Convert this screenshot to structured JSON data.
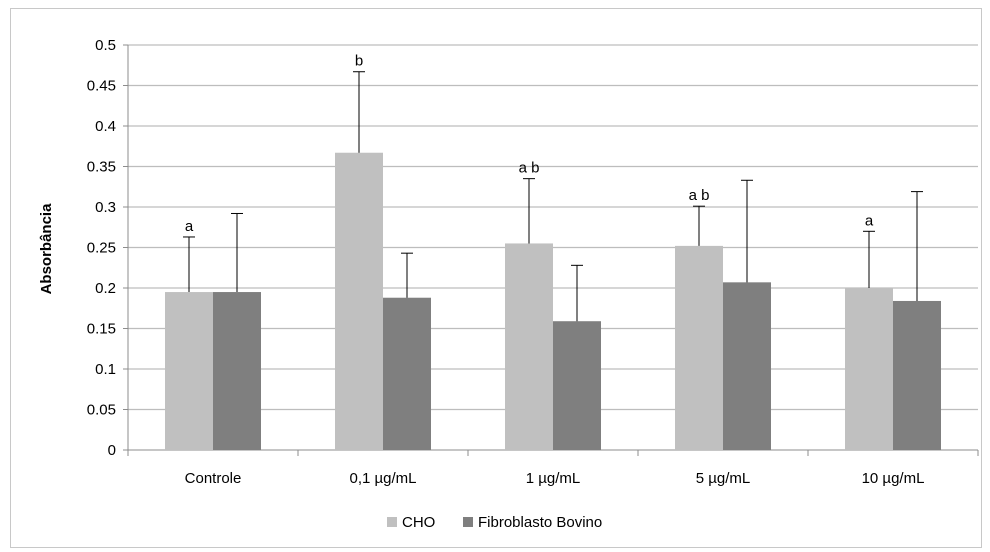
{
  "chart_data": {
    "type": "bar",
    "title": "",
    "xlabel": "",
    "ylabel": "Absorbância",
    "ylim": [
      0,
      0.5
    ],
    "yticks": [
      "0",
      "0.05",
      "0.1",
      "0.15",
      "0.2",
      "0.25",
      "0.3",
      "0.35",
      "0.4",
      "0.45",
      "0.5"
    ],
    "categories": [
      "Controle",
      "0,1 µg/mL",
      "1 µg/mL",
      "5 µg/mL",
      "10 µg/mL"
    ],
    "grid": true,
    "legend_position": "bottom",
    "series": [
      {
        "name": "CHO",
        "color": "#c0c0c0",
        "values": [
          0.195,
          0.367,
          0.255,
          0.252,
          0.2
        ],
        "error_plus": [
          0.068,
          0.1,
          0.08,
          0.049,
          0.07
        ],
        "annotations": [
          "a",
          "b",
          "a b",
          "a b",
          "a"
        ]
      },
      {
        "name": "Fibroblasto Bovino",
        "color": "#7f7f7f",
        "values": [
          0.195,
          0.188,
          0.159,
          0.207,
          0.184
        ],
        "error_plus": [
          0.097,
          0.055,
          0.069,
          0.126,
          0.135
        ],
        "annotations": [
          "",
          "",
          "",
          "",
          ""
        ]
      }
    ]
  }
}
